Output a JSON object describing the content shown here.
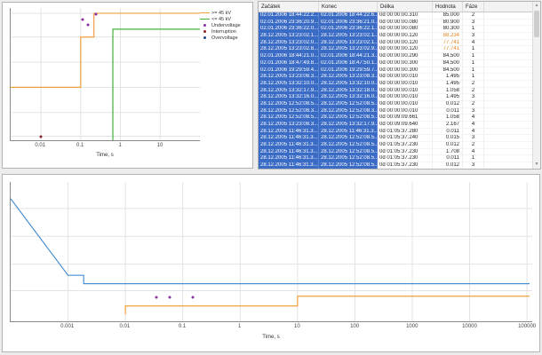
{
  "top_chart": {
    "xlabel": "Time, s",
    "x_ticks": [
      {
        "label": "0.01",
        "pct": 16
      },
      {
        "label": "0.1",
        "pct": 37
      },
      {
        "label": "1",
        "pct": 58
      },
      {
        "label": "10",
        "pct": 79
      }
    ],
    "h_grid_pct": [
      4,
      22,
      41,
      60,
      79,
      97
    ],
    "legend": [
      {
        "label": ">= 45 kV",
        "type": "line",
        "color": "#f0a03c"
      },
      {
        "label": "<= 45 kV",
        "type": "line",
        "color": "#46b03c"
      },
      {
        "label": "Undervoltage",
        "type": "dot",
        "color": "#8b2fa0"
      },
      {
        "label": "Interruption",
        "type": "dot",
        "color": "#8b2222"
      },
      {
        "label": "Overvoltage",
        "type": "dot",
        "color": "#22458b"
      }
    ],
    "series": [
      {
        "name": "upper-tolerance-curve",
        "color": "#f0a03c",
        "points_pct": [
          [
            0,
            60
          ],
          [
            37,
            60
          ],
          [
            37,
            22
          ],
          [
            44,
            22
          ],
          [
            44,
            4
          ],
          [
            100,
            4
          ]
        ]
      },
      {
        "name": "lower-tolerance-curve",
        "color": "#46b03c",
        "points_pct": [
          [
            54,
            100
          ],
          [
            54,
            16
          ],
          [
            100,
            16
          ]
        ]
      }
    ],
    "dots": [
      {
        "name": "undervoltage-event-marker",
        "color": "#8b2fa0",
        "points_pct": [
          [
            38,
            9
          ],
          [
            41,
            13
          ],
          [
            45,
            5
          ]
        ]
      },
      {
        "name": "interruption-event-marker",
        "color": "#8b2222",
        "points_pct": [
          [
            16,
            97
          ]
        ]
      }
    ]
  },
  "bottom_chart": {
    "xlabel": "Time, s",
    "x_ticks": [
      {
        "label": "0.001",
        "pct": 11
      },
      {
        "label": "0.01",
        "pct": 22
      },
      {
        "label": "0.1",
        "pct": 33
      },
      {
        "label": "1",
        "pct": 44
      },
      {
        "label": "10",
        "pct": 55
      },
      {
        "label": "100",
        "pct": 66
      },
      {
        "label": "1000",
        "pct": 77
      },
      {
        "label": "10000",
        "pct": 88
      },
      {
        "label": "100000",
        "pct": 99
      }
    ],
    "h_grid_pct": [
      19,
      39,
      59,
      78
    ],
    "legend": [],
    "series": [
      {
        "name": "upper-limit-curve",
        "color": "#4a90d2",
        "points_pct": [
          [
            0,
            12
          ],
          [
            11,
            67
          ],
          [
            14,
            67
          ],
          [
            14,
            73
          ],
          [
            99.5,
            73
          ]
        ]
      },
      {
        "name": "lower-limit-curve",
        "color": "#f0a03c",
        "points_pct": [
          [
            22,
            95
          ],
          [
            22,
            89
          ],
          [
            55,
            89
          ],
          [
            55,
            82
          ],
          [
            99.5,
            82
          ]
        ]
      }
    ],
    "dots": [
      {
        "name": "event-marker",
        "color": "#8b2fa0",
        "points_pct": [
          [
            28,
            83
          ],
          [
            30.5,
            83
          ],
          [
            35,
            82.5
          ]
        ]
      }
    ]
  },
  "events_table": {
    "columns": [
      "Začátek",
      "Konec",
      "Délka",
      "Hodnota",
      "Fáze"
    ],
    "selection_color": "#3a6bc5",
    "highlight_value_color": "#e8821e",
    "highlight_value_rows": [
      3,
      4,
      5
    ],
    "rows": [
      [
        "02.01.2006 18:44:22.2...",
        "02.01.2006 18:44:22.6...",
        "0d 00:00:00.310",
        "85.000",
        "2"
      ],
      [
        "02.01.2006 23:36:20.9...",
        "02.01.2006 23:36:21.0...",
        "0d 00:00:00.080",
        "80.900",
        "3"
      ],
      [
        "02.01.2006 23:36:22.0...",
        "02.01.2006 23:36:22.1...",
        "0d 00:00:00.080",
        "80.300",
        "1"
      ],
      [
        "28.12.2005 13:23:02.1...",
        "28.12.2005 13:23:02.1...",
        "0d 00:00:00.120",
        "88.234",
        "3"
      ],
      [
        "28.12.2005 13:23:02.0...",
        "28.12.2005 13:23:02.1...",
        "0d 00:00:00.120",
        "77.741",
        "4"
      ],
      [
        "28.12.2005 13:23:02.8...",
        "28.12.2005 13:23:02.9...",
        "0d 00:00:00.120",
        "77.741",
        "1"
      ],
      [
        "02.01.2006 18:44:21.0...",
        "02.01.2006 18:44:21.3...",
        "0d 00:00:00.290",
        "84.500",
        "1"
      ],
      [
        "02.01.2006 18:47:49.8...",
        "02.01.2006 18:47:50.1...",
        "0d 00:00:00.300",
        "84.500",
        "1"
      ],
      [
        "02.01.2006 19:29:59.4...",
        "02.01.2006 19:29:59.7...",
        "0d 00:00:00.300",
        "84.500",
        "1"
      ],
      [
        "28.12.2005 13:23:08.3...",
        "28.12.2005 13:23:08.3...",
        "0d 00:00:00.010",
        "1.495",
        "1"
      ],
      [
        "28.12.2005 13:32:10.0...",
        "28.12.2005 13:32:10.0...",
        "0d 00:00:00.010",
        "1.495",
        "2"
      ],
      [
        "28.12.2005 13:32:17.9...",
        "28.12.2005 13:32:18.0...",
        "0d 00:00:00.010",
        "1.058",
        "2"
      ],
      [
        "28.12.2005 13:32:16.0...",
        "28.12.2005 13:32:16.0...",
        "0d 00:00:00.010",
        "1.495",
        "3"
      ],
      [
        "28.12.2005 12:52:08.5...",
        "28.12.2005 12:52:08.5...",
        "0d 00:00:00.010",
        "0.012",
        "2"
      ],
      [
        "28.12.2005 12:52:08.3...",
        "28.12.2005 12:52:08.3...",
        "0d 00:00:00.010",
        "0.011",
        "3"
      ],
      [
        "28.12.2005 12:52:08.5...",
        "28.12.2005 12:52:08.5...",
        "0d 00:09:09.661",
        "1.058",
        "4"
      ],
      [
        "28.12.2005 13:23:08.3...",
        "28.12.2005 13:32:17.9...",
        "0d 00:09:09.640",
        "2.167",
        "4"
      ],
      [
        "28.12.2005 11:46:31.3...",
        "28.12.2005 11:46:31.3...",
        "0d 01:05:37.280",
        "0.011",
        "4"
      ],
      [
        "28.12.2005 11:46:31.3...",
        "28.12.2005 12:52:08.5...",
        "0d 01:05:37.240",
        "0.015",
        "3"
      ],
      [
        "28.12.2005 11:46:31.3...",
        "28.12.2005 12:52:08.5...",
        "0d 01:05:37.230",
        "0.012",
        "2"
      ],
      [
        "28.12.2005 11:46:31.3...",
        "28.12.2005 12:52:08.5...",
        "0d 01:05:37.230",
        "1.708",
        "4"
      ],
      [
        "28.12.2005 11:46:31.3...",
        "28.12.2005 12:52:08.5...",
        "0d 01:05:37.230",
        "0.011",
        "1"
      ],
      [
        "28.12.2005 11:46:31.3...",
        "28.12.2005 12:52:08.5...",
        "0d 01:05:37.230",
        "0.012",
        "3"
      ]
    ]
  }
}
